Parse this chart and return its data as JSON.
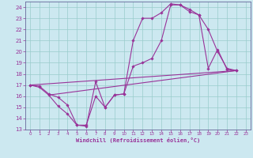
{
  "xlabel": "Windchill (Refroidissement éolien,°C)",
  "bg_color": "#cce8f0",
  "grid_color": "#99cccc",
  "line_color": "#993399",
  "spine_color": "#666699",
  "xlim": [
    -0.5,
    23.5
  ],
  "ylim": [
    13,
    24.5
  ],
  "xticks": [
    0,
    1,
    2,
    3,
    4,
    5,
    6,
    7,
    8,
    9,
    10,
    11,
    12,
    13,
    14,
    15,
    16,
    17,
    18,
    19,
    20,
    21,
    22,
    23
  ],
  "yticks": [
    13,
    14,
    15,
    16,
    17,
    18,
    19,
    20,
    21,
    22,
    23,
    24
  ],
  "series": [
    {
      "x": [
        0,
        1,
        2,
        3,
        4,
        5,
        6,
        7,
        8,
        9,
        10,
        11,
        12,
        13,
        14,
        15,
        16,
        17,
        18,
        19,
        20,
        21,
        22
      ],
      "y": [
        17.0,
        16.8,
        16.1,
        15.1,
        14.4,
        13.4,
        13.3,
        17.3,
        15.0,
        16.1,
        16.2,
        18.7,
        19.0,
        19.4,
        21.0,
        24.2,
        24.2,
        23.8,
        23.3,
        18.5,
        20.2,
        18.4,
        18.3
      ]
    },
    {
      "x": [
        0,
        1,
        2,
        3,
        4,
        5,
        6,
        7,
        8,
        9,
        10,
        11,
        12,
        13,
        14,
        15,
        16,
        17,
        18,
        19,
        20,
        21,
        22
      ],
      "y": [
        17.0,
        16.9,
        16.2,
        15.9,
        15.2,
        13.4,
        13.4,
        16.0,
        15.0,
        16.1,
        16.2,
        21.0,
        23.0,
        23.0,
        23.5,
        24.3,
        24.2,
        23.6,
        23.3,
        22.0,
        20.0,
        18.5,
        18.3
      ]
    },
    {
      "x": [
        0,
        22
      ],
      "y": [
        17.0,
        18.3
      ]
    },
    {
      "x": [
        2,
        22
      ],
      "y": [
        16.1,
        18.3
      ]
    }
  ]
}
